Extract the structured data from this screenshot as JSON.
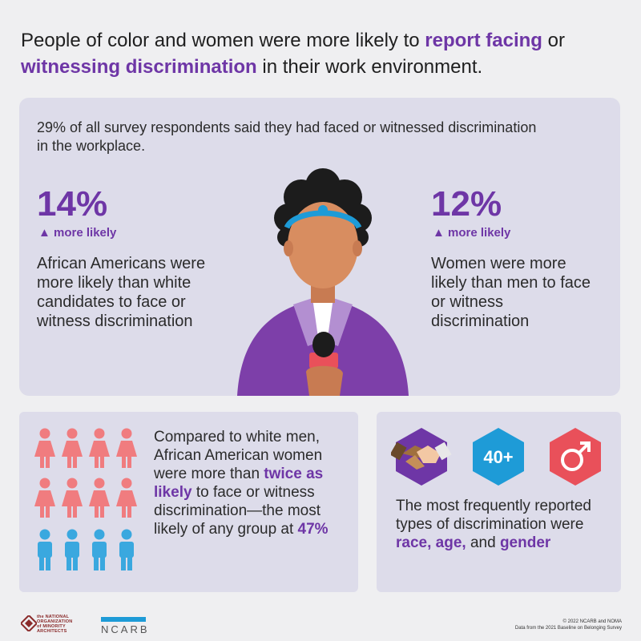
{
  "headline": {
    "part1": "People of color and women were more likely to ",
    "highlight1": "report facing",
    "part2": " or ",
    "highlight2": "witnessing discrimination",
    "part3": " in their work environment."
  },
  "top_panel": {
    "intro": "29% of all survey respondents said they had faced or witnessed discrimination in the workplace.",
    "left_stat": {
      "value": "14%",
      "sub": "▲ more likely",
      "text": "African Americans were more likely than white candidates to face or witness discrimination"
    },
    "right_stat": {
      "value": "12%",
      "sub": "▲ more likely",
      "text": "Women were more likely than men to face or witness discrimination"
    }
  },
  "bottom_left": {
    "text1": "Compared to white men, African American women were more than ",
    "highlight1": "twice as likely",
    "text2": " to face or witness discrimination—the most likely of any group at ",
    "highlight2": "47%"
  },
  "bottom_right": {
    "badges": {
      "race_icon": "handshake-icon",
      "age_label": "40+",
      "gender_icon": "male-symbol-icon"
    },
    "text1": "The most frequently reported types of discrimination were ",
    "race": "race,",
    "age": "age,",
    "text_and": " and ",
    "gender": "gender"
  },
  "footer": {
    "noma_lines": [
      "the NATIONAL",
      "ORGANIZATION",
      "of MINORITY",
      "ARCHITECTS"
    ],
    "ncarb": "NCARB",
    "copyright": "© 2022 NCARB and NOMA",
    "source": "Data from the 2021 Baseline on Belonging Survey"
  },
  "colors": {
    "accent_purple": "#6e36a6",
    "panel": "#dddcea",
    "women_pink": "#f07c7f",
    "men_blue": "#3aa8df",
    "hex_purple": "#6e36a6",
    "hex_blue": "#1e9bd7",
    "hex_red": "#e9505a"
  }
}
